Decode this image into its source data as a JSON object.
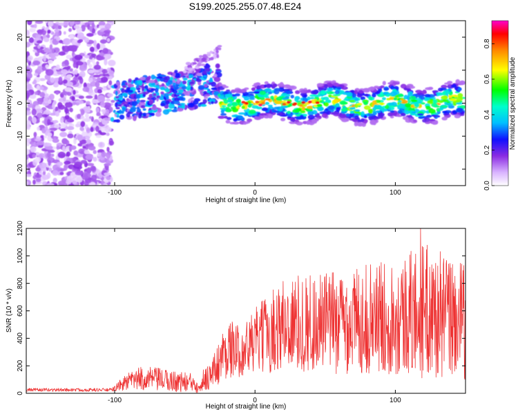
{
  "title": "S199.2025.255.07.48.E24",
  "chart_data": [
    {
      "type": "heatmap",
      "name": "spectrogram",
      "xlabel": "Height of straight line (km)",
      "ylabel": "Frequency (Hz)",
      "xlim": [
        -163,
        150
      ],
      "ylim": [
        -25,
        25
      ],
      "xticks": [
        -100,
        0,
        100
      ],
      "yticks": [
        -20,
        -10,
        0,
        10,
        20
      ],
      "colorbar": {
        "label": "Normalized spectral amplitude",
        "range": [
          0.0,
          0.93
        ],
        "ticks": [
          0.0,
          0.2,
          0.4,
          0.6,
          0.8
        ]
      },
      "features": [
        {
          "region": "noise",
          "x": [
            -163,
            -102
          ],
          "y": [
            -25,
            25
          ],
          "amplitude": 0.1
        },
        {
          "region": "weak-signal",
          "x": [
            -102,
            -25
          ],
          "y_center_start": 0,
          "y_center_end": 6,
          "amplitude": 0.25
        },
        {
          "region": "drifting-line",
          "x": [
            -50,
            -25
          ],
          "y_center_start": 10,
          "y_center_end": 16,
          "amplitude": 0.1
        },
        {
          "region": "strong-line",
          "x": [
            -25,
            148
          ],
          "y_center": 0,
          "amplitude": 0.5,
          "peak_amplitude": 0.9
        }
      ]
    },
    {
      "type": "line",
      "name": "snr",
      "xlabel": "Height of straight line (km)",
      "ylabel": "SNR (10 * v/v)",
      "xlim": [
        -163,
        150
      ],
      "ylim": [
        0,
        1200
      ],
      "xticks": [
        -100,
        0,
        100
      ],
      "yticks": [
        0,
        200,
        400,
        600,
        800,
        1000,
        1200
      ],
      "series": [
        {
          "name": "SNR",
          "color": "#ee3333",
          "envelope": [
            {
              "x": -163,
              "mean": 25,
              "spread": 12
            },
            {
              "x": -102,
              "mean": 25,
              "spread": 12
            },
            {
              "x": -92,
              "mean": 80,
              "spread": 60
            },
            {
              "x": -80,
              "mean": 110,
              "spread": 90
            },
            {
              "x": -60,
              "mean": 90,
              "spread": 80
            },
            {
              "x": -40,
              "mean": 70,
              "spread": 70
            },
            {
              "x": -30,
              "mean": 150,
              "spread": 120
            },
            {
              "x": -20,
              "mean": 330,
              "spread": 220
            },
            {
              "x": -10,
              "mean": 300,
              "spread": 180
            },
            {
              "x": 0,
              "mean": 380,
              "spread": 240
            },
            {
              "x": 20,
              "mean": 500,
              "spread": 350
            },
            {
              "x": 60,
              "mean": 520,
              "spread": 380
            },
            {
              "x": 100,
              "mean": 560,
              "spread": 420
            },
            {
              "x": 120,
              "mean": 600,
              "spread": 500
            },
            {
              "x": 150,
              "mean": 520,
              "spread": 420
            }
          ],
          "peak": {
            "x": 118,
            "y": 1200
          }
        }
      ]
    }
  ]
}
